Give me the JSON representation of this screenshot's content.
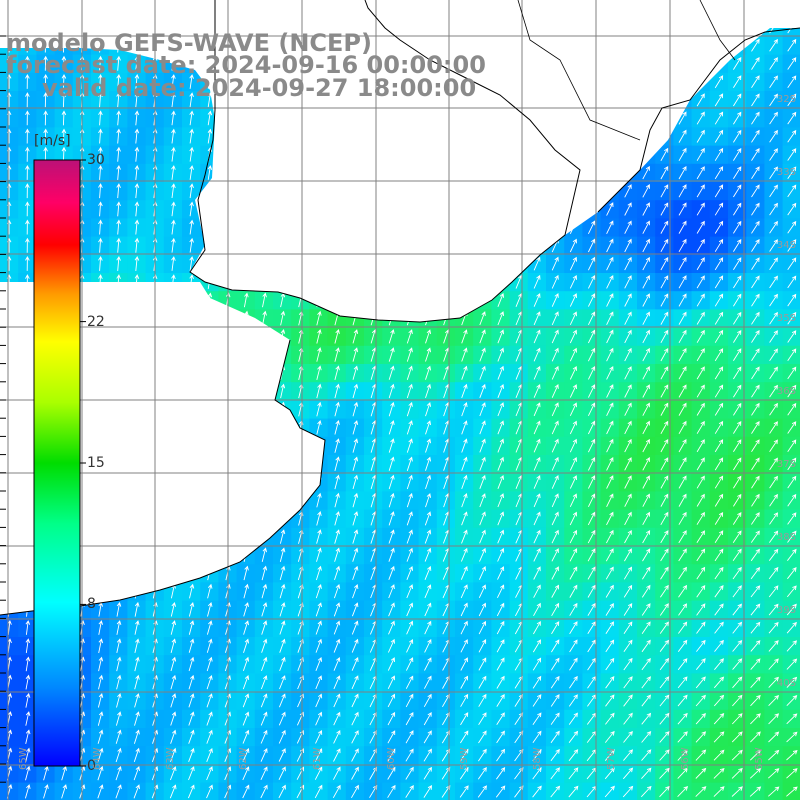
{
  "title": {
    "line1": "modelo GEFS-WAVE (NCEP)",
    "line2": "forecast date: 2024-09-16 00:00:00",
    "line3": "valid date: 2024-09-27 18:00:00"
  },
  "colorbar": {
    "unit": "[m/s]",
    "ticks": [
      "30",
      "22",
      "15",
      "8",
      "0"
    ],
    "ticks_value": [
      30,
      22,
      15,
      8,
      0
    ],
    "range": [
      0,
      30
    ],
    "colors": [
      "#0000ff",
      "#00aaff",
      "#00ffff",
      "#00ff55",
      "#00dd00",
      "#aaff00",
      "#ffff00",
      "#ff9900",
      "#ff0000",
      "#ff0055",
      "#cc0088",
      "#bb1177"
    ]
  },
  "map": {
    "lon_labels": [
      "65W",
      "64W",
      "63W",
      "62W",
      "61W",
      "60W",
      "59W",
      "58W",
      "57W",
      "56W",
      "55W"
    ],
    "lat_labels": [
      "32S",
      "33S",
      "34S",
      "35S",
      "36S",
      "37S",
      "38S",
      "39S",
      "40S"
    ],
    "land_color": "#ffffff",
    "grid_color": "#808080",
    "coast_color": "#000000",
    "arrow_color": "#ffffff",
    "field_description_colors": {
      "low": "#0055ff",
      "mid": "#00ccff",
      "high": "#22ee66"
    }
  }
}
